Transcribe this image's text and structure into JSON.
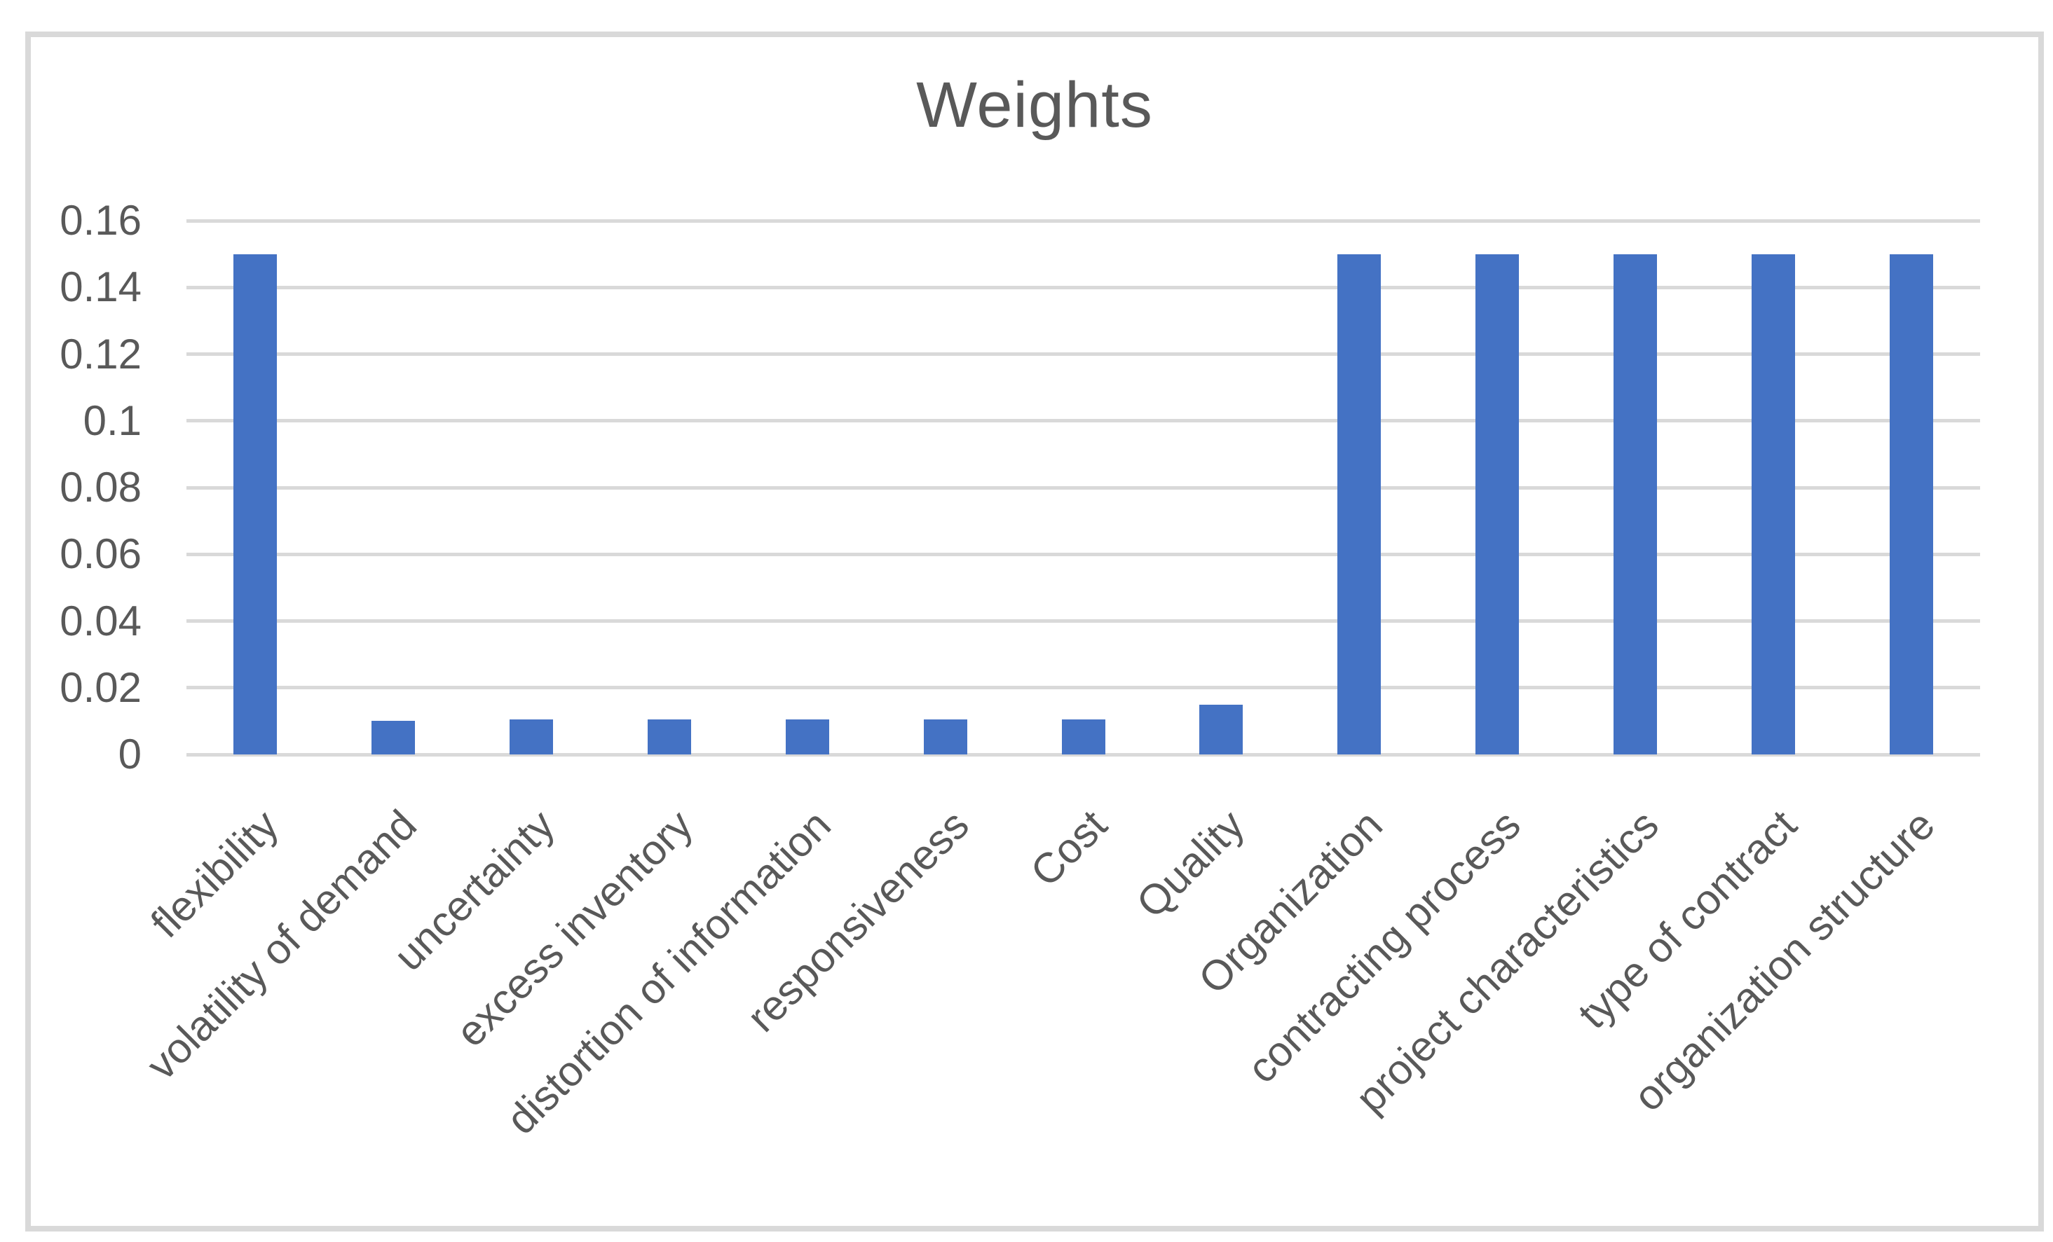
{
  "chart_data": {
    "type": "bar",
    "title": "Weights",
    "categories": [
      "flexibility",
      "volatility of demand",
      "uncertainty",
      "excess inventory",
      "distortion of information",
      "responsiveness",
      "Cost",
      "Quality",
      "Organization",
      "contracting process",
      "project characteristics",
      "type of contract",
      "organization structure"
    ],
    "values": [
      0.15,
      0.01,
      0.0105,
      0.0105,
      0.0105,
      0.0105,
      0.0105,
      0.015,
      0.15,
      0.15,
      0.15,
      0.15,
      0.15
    ],
    "y_ticks": [
      "0.16",
      "0.14",
      "0.12",
      "0.1",
      "0.08",
      "0.06",
      "0.04",
      "0.02",
      "0"
    ],
    "ylim": [
      0,
      0.16
    ],
    "xlabel": "",
    "ylabel": "",
    "grid": true,
    "legend_position": "none",
    "x_label_rotation_deg": 45,
    "colors": {
      "bar": "#4472C4",
      "gridline": "#D9D9D9",
      "text": "#595959",
      "frame_border": "#D9D9D9",
      "background": "#FFFFFF"
    }
  }
}
